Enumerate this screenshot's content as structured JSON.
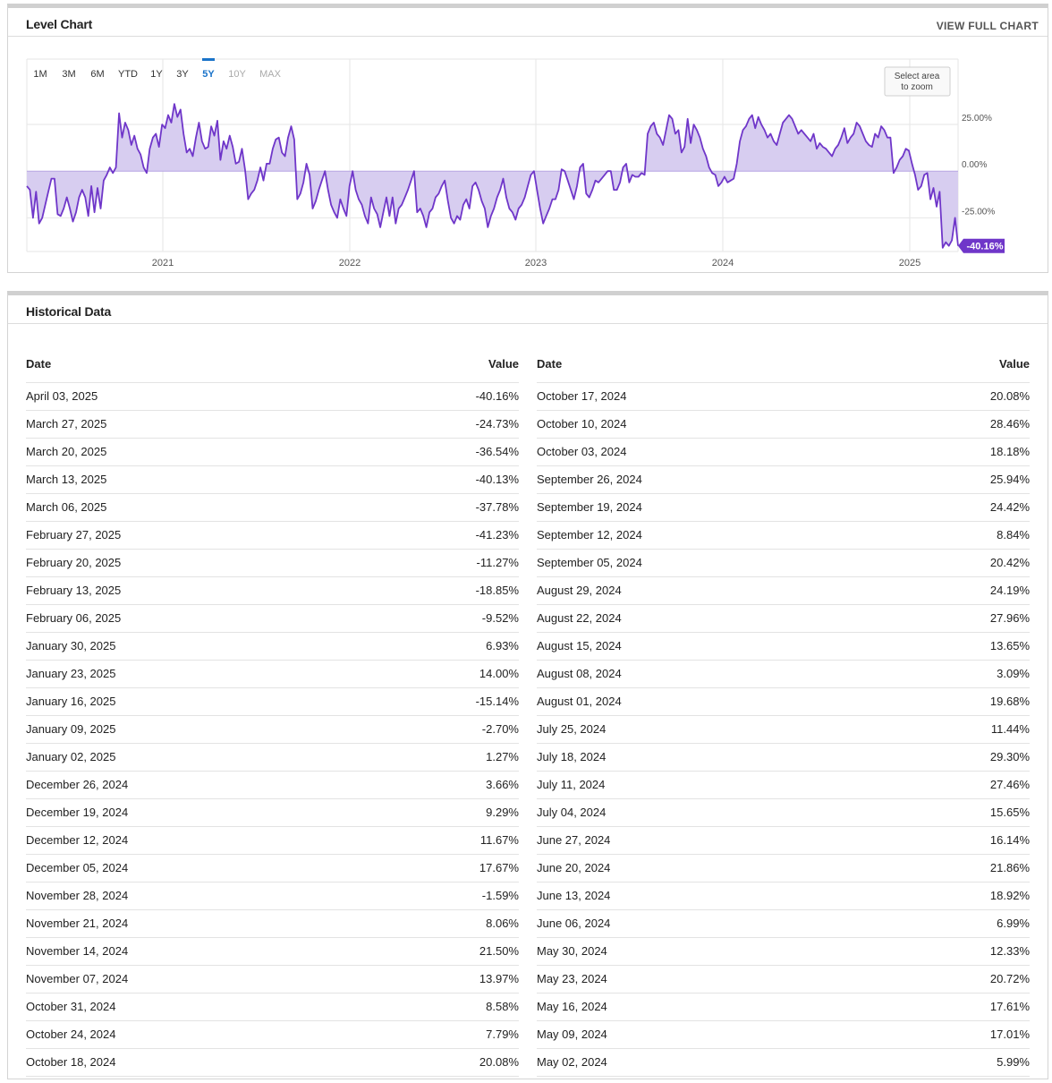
{
  "level_chart": {
    "title": "Level Chart",
    "view_full_label": "VIEW FULL CHART",
    "range_buttons": [
      "1M",
      "3M",
      "6M",
      "YTD",
      "1Y",
      "3Y",
      "5Y",
      "10Y",
      "MAX"
    ],
    "active_range": "5Y",
    "disabled_ranges": [
      "10Y",
      "MAX"
    ],
    "zoom_hint": [
      "Select area",
      "to zoom"
    ],
    "last_value_label": "-40.16%",
    "colors": {
      "line": "#6f36c9",
      "fill": "#d7cdf0",
      "accent": "#1a73c9"
    }
  },
  "chart_data": {
    "type": "area",
    "x_tick_labels": [
      "2021",
      "2022",
      "2023",
      "2024",
      "2025"
    ],
    "y_tick_labels": [
      "25.00%",
      "0.00%",
      "-25.00%"
    ],
    "y_ticks": [
      25,
      0,
      -25
    ],
    "ylim": [
      -43,
      60
    ],
    "grid": true,
    "series": [
      {
        "values": [
          -8,
          -10,
          -25,
          -11,
          -28,
          -25,
          -18,
          -11,
          -4,
          -4,
          -23,
          -24,
          -20,
          -14,
          -20,
          -27,
          -22,
          -14,
          -10,
          -14,
          -24,
          -8,
          -22,
          -9,
          -20,
          -5,
          -2,
          2,
          -1,
          2,
          31,
          18,
          26,
          22,
          14,
          19,
          12,
          9,
          2,
          -1,
          12,
          18,
          20,
          13,
          25,
          23,
          30,
          26,
          36,
          29,
          33,
          20,
          10,
          12,
          8,
          18,
          26,
          16,
          12,
          13,
          24,
          19,
          27,
          6,
          16,
          12,
          19,
          13,
          4,
          5,
          12,
          1,
          -15,
          -12,
          -10,
          -5,
          2,
          -5,
          4,
          4,
          12,
          17,
          18,
          10,
          8,
          18,
          24,
          17,
          -15,
          -12,
          -6,
          4,
          -2,
          -20,
          -16,
          -10,
          -5,
          0,
          -10,
          -18,
          -22,
          -25,
          -15,
          -20,
          -24,
          -8,
          0,
          -10,
          -15,
          -18,
          -24,
          -28,
          -14,
          -20,
          -23,
          -30,
          -22,
          -14,
          -24,
          -14,
          -28,
          -20,
          -18,
          -14,
          -10,
          -5,
          0,
          -22,
          -20,
          -24,
          -30,
          -22,
          -20,
          -14,
          -12,
          -8,
          -5,
          -16,
          -25,
          -28,
          -24,
          -26,
          -18,
          -15,
          -20,
          -8,
          -6,
          -10,
          -16,
          -20,
          -30,
          -24,
          -20,
          -14,
          -10,
          -4,
          -14,
          -20,
          -22,
          -26,
          -20,
          -18,
          -14,
          -8,
          -2,
          0,
          -10,
          -20,
          -28,
          -24,
          -20,
          -15,
          -15,
          -10,
          1,
          0,
          -5,
          -10,
          -15,
          -8,
          2,
          4,
          -12,
          -14,
          -10,
          -5,
          -6,
          -4,
          -2,
          0,
          0,
          -10,
          -10,
          -6,
          2,
          4,
          -6,
          -2,
          -3,
          -3,
          -1,
          -2,
          20,
          24,
          26,
          20,
          18,
          14,
          22,
          30,
          28,
          20,
          22,
          10,
          13,
          28,
          15,
          25,
          22,
          18,
          12,
          8,
          2,
          -1,
          -2,
          -8,
          -6,
          -3,
          -6,
          -5,
          -4,
          4,
          16,
          22,
          24,
          28,
          30,
          23,
          29,
          25,
          22,
          18,
          20,
          16,
          14,
          20,
          26,
          28,
          30,
          28,
          24,
          20,
          22,
          20,
          18,
          16,
          20,
          12,
          15,
          13,
          12,
          10,
          8,
          12,
          14,
          18,
          23,
          15,
          18,
          20,
          26,
          24,
          20,
          16,
          14,
          13,
          20,
          18,
          24,
          22,
          18,
          18,
          -1,
          2,
          6,
          8,
          12,
          11,
          4,
          -2,
          -10,
          -8,
          -2,
          -1,
          -15,
          -9,
          -19,
          -11,
          -41,
          -38,
          -40,
          -37,
          -25,
          -40
        ]
      }
    ]
  },
  "historical": {
    "title": "Historical Data",
    "date_header": "Date",
    "value_header": "Value",
    "left": [
      {
        "date": "April 03, 2025",
        "value": "-40.16%"
      },
      {
        "date": "March 27, 2025",
        "value": "-24.73%"
      },
      {
        "date": "March 20, 2025",
        "value": "-36.54%"
      },
      {
        "date": "March 13, 2025",
        "value": "-40.13%"
      },
      {
        "date": "March 06, 2025",
        "value": "-37.78%"
      },
      {
        "date": "February 27, 2025",
        "value": "-41.23%"
      },
      {
        "date": "February 20, 2025",
        "value": "-11.27%"
      },
      {
        "date": "February 13, 2025",
        "value": "-18.85%"
      },
      {
        "date": "February 06, 2025",
        "value": "-9.52%"
      },
      {
        "date": "January 30, 2025",
        "value": "6.93%"
      },
      {
        "date": "January 23, 2025",
        "value": "14.00%"
      },
      {
        "date": "January 16, 2025",
        "value": "-15.14%"
      },
      {
        "date": "January 09, 2025",
        "value": "-2.70%"
      },
      {
        "date": "January 02, 2025",
        "value": "1.27%"
      },
      {
        "date": "December 26, 2024",
        "value": "3.66%"
      },
      {
        "date": "December 19, 2024",
        "value": "9.29%"
      },
      {
        "date": "December 12, 2024",
        "value": "11.67%"
      },
      {
        "date": "December 05, 2024",
        "value": "17.67%"
      },
      {
        "date": "November 28, 2024",
        "value": "-1.59%"
      },
      {
        "date": "November 21, 2024",
        "value": "8.06%"
      },
      {
        "date": "November 14, 2024",
        "value": "21.50%"
      },
      {
        "date": "November 07, 2024",
        "value": "13.97%"
      },
      {
        "date": "October 31, 2024",
        "value": "8.58%"
      },
      {
        "date": "October 24, 2024",
        "value": "7.79%"
      },
      {
        "date": "October 18, 2024",
        "value": "20.08%"
      }
    ],
    "right": [
      {
        "date": "October 17, 2024",
        "value": "20.08%"
      },
      {
        "date": "October 10, 2024",
        "value": "28.46%"
      },
      {
        "date": "October 03, 2024",
        "value": "18.18%"
      },
      {
        "date": "September 26, 2024",
        "value": "25.94%"
      },
      {
        "date": "September 19, 2024",
        "value": "24.42%"
      },
      {
        "date": "September 12, 2024",
        "value": "8.84%"
      },
      {
        "date": "September 05, 2024",
        "value": "20.42%"
      },
      {
        "date": "August 29, 2024",
        "value": "24.19%"
      },
      {
        "date": "August 22, 2024",
        "value": "27.96%"
      },
      {
        "date": "August 15, 2024",
        "value": "13.65%"
      },
      {
        "date": "August 08, 2024",
        "value": "3.09%"
      },
      {
        "date": "August 01, 2024",
        "value": "19.68%"
      },
      {
        "date": "July 25, 2024",
        "value": "11.44%"
      },
      {
        "date": "July 18, 2024",
        "value": "29.30%"
      },
      {
        "date": "July 11, 2024",
        "value": "27.46%"
      },
      {
        "date": "July 04, 2024",
        "value": "15.65%"
      },
      {
        "date": "June 27, 2024",
        "value": "16.14%"
      },
      {
        "date": "June 20, 2024",
        "value": "21.86%"
      },
      {
        "date": "June 13, 2024",
        "value": "18.92%"
      },
      {
        "date": "June 06, 2024",
        "value": "6.99%"
      },
      {
        "date": "May 30, 2024",
        "value": "12.33%"
      },
      {
        "date": "May 23, 2024",
        "value": "20.72%"
      },
      {
        "date": "May 16, 2024",
        "value": "17.61%"
      },
      {
        "date": "May 09, 2024",
        "value": "17.01%"
      },
      {
        "date": "May 02, 2024",
        "value": "5.99%"
      }
    ]
  }
}
